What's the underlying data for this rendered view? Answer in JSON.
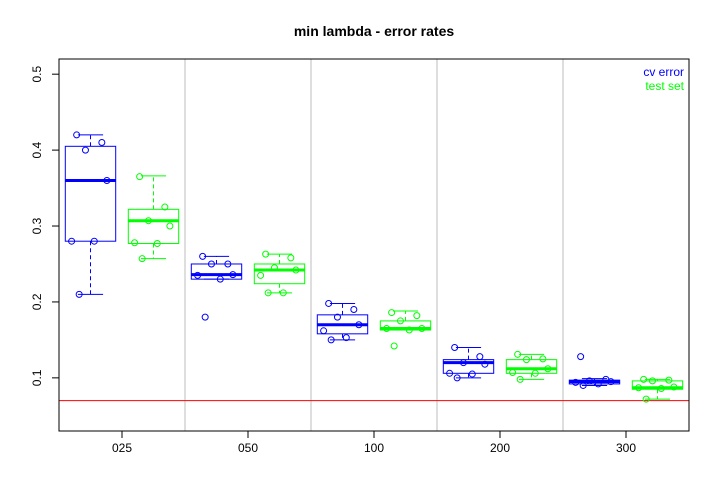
{
  "chart_data": {
    "type": "boxplot",
    "title": "min lambda - error rates",
    "xlabel": "",
    "ylabel": "",
    "categories": [
      "025",
      "050",
      "100",
      "200",
      "300"
    ],
    "ylim": [
      0.03,
      0.52
    ],
    "yticks": [
      0.1,
      0.2,
      0.3,
      0.4,
      0.5
    ],
    "grid": "vertical separators between groups",
    "legend_position": "top-right",
    "reference_line": {
      "y": 0.07,
      "color": "#ff0000"
    },
    "series": [
      {
        "name": "cv error",
        "color": "#0000ff",
        "boxes": [
          {
            "category": "025",
            "lower_whisker": 0.21,
            "q1": 0.28,
            "median": 0.36,
            "q3": 0.405,
            "upper_whisker": 0.42,
            "points": [
              0.42,
              0.41,
              0.4,
              0.36,
              0.28,
              0.28,
              0.21
            ]
          },
          {
            "category": "050",
            "lower_whisker": 0.23,
            "q1": 0.23,
            "median": 0.236,
            "q3": 0.25,
            "upper_whisker": 0.26,
            "points": [
              0.26,
              0.25,
              0.25,
              0.236,
              0.235,
              0.23,
              0.18
            ]
          },
          {
            "category": "100",
            "lower_whisker": 0.15,
            "q1": 0.158,
            "median": 0.17,
            "q3": 0.183,
            "upper_whisker": 0.198,
            "points": [
              0.198,
              0.19,
              0.18,
              0.17,
              0.162,
              0.153,
              0.15
            ]
          },
          {
            "category": "200",
            "lower_whisker": 0.1,
            "q1": 0.106,
            "median": 0.12,
            "q3": 0.124,
            "upper_whisker": 0.14,
            "points": [
              0.14,
              0.128,
              0.12,
              0.118,
              0.106,
              0.105,
              0.1
            ]
          },
          {
            "category": "300",
            "lower_whisker": 0.09,
            "q1": 0.092,
            "median": 0.095,
            "q3": 0.097,
            "upper_whisker": 0.099,
            "points": [
              0.128,
              0.098,
              0.096,
              0.095,
              0.094,
              0.092,
              0.09
            ]
          }
        ]
      },
      {
        "name": "test set",
        "color": "#00ff00",
        "boxes": [
          {
            "category": "025",
            "lower_whisker": 0.257,
            "q1": 0.277,
            "median": 0.307,
            "q3": 0.322,
            "upper_whisker": 0.366,
            "points": [
              0.365,
              0.325,
              0.307,
              0.3,
              0.278,
              0.277,
              0.257
            ]
          },
          {
            "category": "050",
            "lower_whisker": 0.212,
            "q1": 0.224,
            "median": 0.242,
            "q3": 0.25,
            "upper_whisker": 0.263,
            "points": [
              0.263,
              0.258,
              0.245,
              0.242,
              0.235,
              0.212,
              0.212
            ]
          },
          {
            "category": "100",
            "lower_whisker": 0.163,
            "q1": 0.163,
            "median": 0.165,
            "q3": 0.175,
            "upper_whisker": 0.188,
            "points": [
              0.186,
              0.182,
              0.175,
              0.165,
              0.165,
              0.163,
              0.142
            ]
          },
          {
            "category": "200",
            "lower_whisker": 0.098,
            "q1": 0.106,
            "median": 0.112,
            "q3": 0.124,
            "upper_whisker": 0.131,
            "points": [
              0.131,
              0.125,
              0.124,
              0.112,
              0.107,
              0.106,
              0.098
            ]
          },
          {
            "category": "300",
            "lower_whisker": 0.072,
            "q1": 0.085,
            "median": 0.087,
            "q3": 0.096,
            "upper_whisker": 0.098,
            "points": [
              0.098,
              0.097,
              0.096,
              0.088,
              0.087,
              0.086,
              0.072
            ]
          }
        ]
      }
    ]
  }
}
